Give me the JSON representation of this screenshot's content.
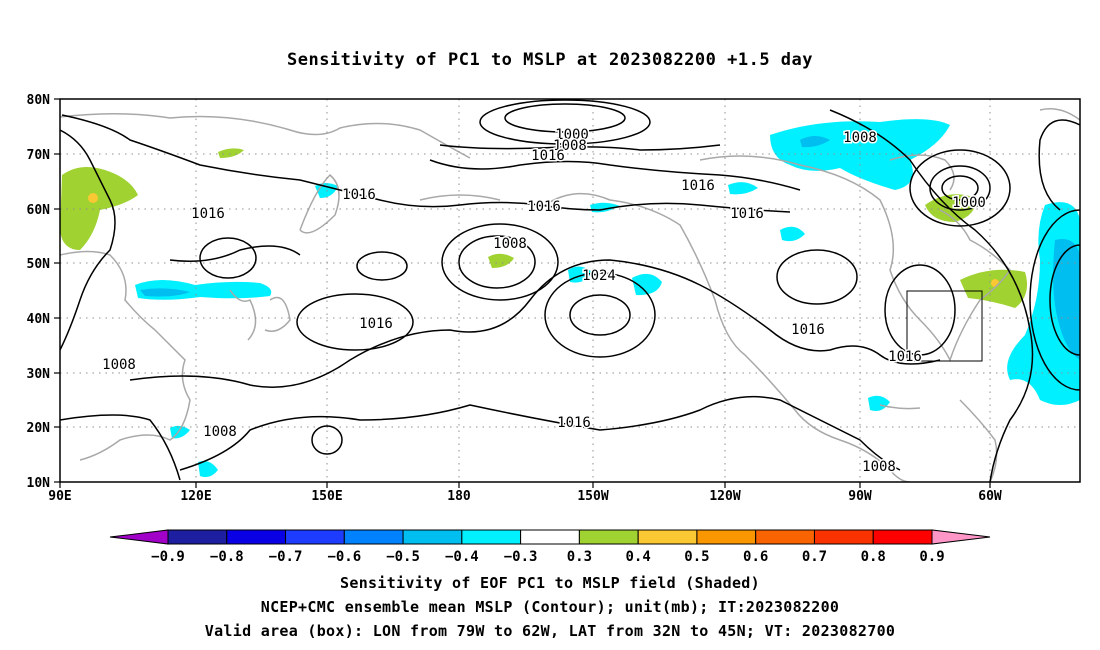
{
  "title": "Sensitivity of PC1 to MSLP at 2023082200 +1.5 day",
  "map": {
    "lat_labels": [
      "80N",
      "70N",
      "60N",
      "50N",
      "40N",
      "30N",
      "20N",
      "10N"
    ],
    "lon_labels": [
      "90E",
      "120E",
      "150E",
      "180",
      "150W",
      "120W",
      "90W",
      "60W"
    ],
    "contour_labels": [
      {
        "text": "1000"
      },
      {
        "text": "1008"
      },
      {
        "text": "1016"
      },
      {
        "text": "1016"
      },
      {
        "text": "1016"
      },
      {
        "text": "1016"
      },
      {
        "text": "1016"
      },
      {
        "text": "1008"
      },
      {
        "text": "1000"
      },
      {
        "text": "1008"
      },
      {
        "text": "1024"
      },
      {
        "text": "1016"
      },
      {
        "text": "1016"
      },
      {
        "text": "1016"
      },
      {
        "text": "1008"
      },
      {
        "text": "1008"
      },
      {
        "text": "1016"
      },
      {
        "text": "1008"
      }
    ],
    "valid_box": {
      "lon_from": "79W",
      "lon_to": "62W",
      "lat_from": "32N",
      "lat_to": "45N"
    }
  },
  "colorbar": {
    "colors": [
      "#a000c8",
      "#1e1ea0",
      "#0a00e6",
      "#1e3cff",
      "#0082ff",
      "#00bef0",
      "#00f0ff",
      "#ffffff",
      "#a0d232",
      "#fac832",
      "#fa9600",
      "#fa6400",
      "#fa3200",
      "#ff0000",
      "#ff96c8"
    ],
    "labels": [
      "−0.9",
      "−0.8",
      "−0.7",
      "−0.6",
      "−0.5",
      "−0.4",
      "−0.3",
      "0.3",
      "0.4",
      "0.5",
      "0.6",
      "0.7",
      "0.8",
      "0.9"
    ]
  },
  "captions": {
    "line1": "Sensitivity of EOF PC1 to MSLP field (Shaded)",
    "line2": "NCEP+CMC ensemble mean MSLP (Contour); unit(mb); IT:2023082200",
    "line3": "Valid area (box): LON from 79W to 62W, LAT from 32N to 45N; VT: 2023082700"
  }
}
